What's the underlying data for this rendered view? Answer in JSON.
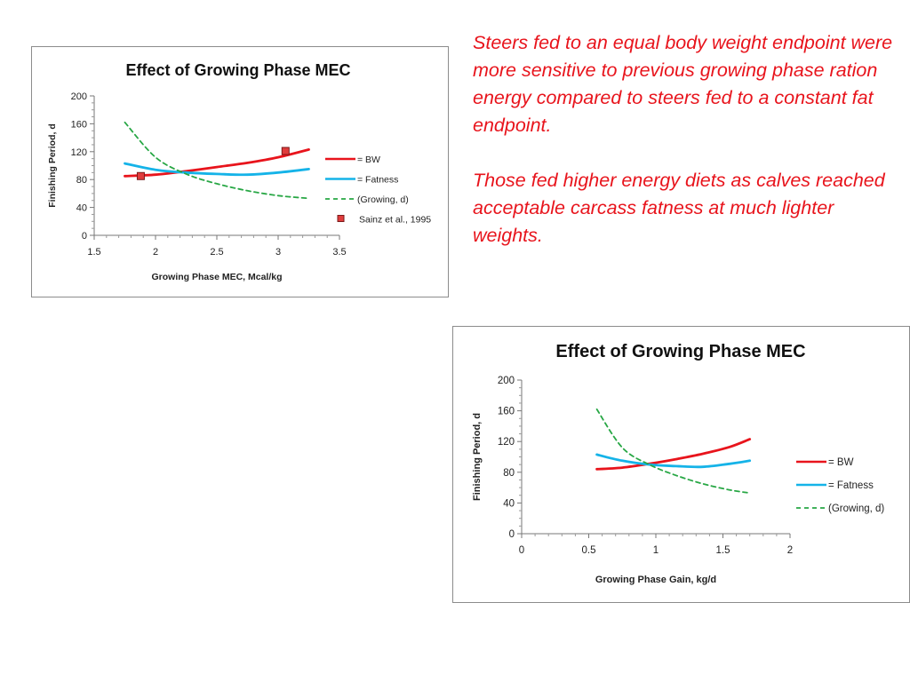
{
  "notes": {
    "para1": "Steers fed to an equal body weight endpoint were more sensitive to previous growing phase ration energy compared to steers fed to a constant fat endpoint.",
    "para2": "Those fed higher energy diets as calves reached acceptable carcass fatness at much lighter weights."
  },
  "colors": {
    "bw": "#e8141c",
    "fatness": "#15b3e8",
    "growing": "#28a745",
    "sainz_fill": "#e03c3c",
    "note_text": "#e8141c"
  },
  "chart_data": [
    {
      "type": "line",
      "title": "Effect of Growing Phase MEC",
      "xlabel": "Growing Phase MEC, Mcal/kg",
      "ylabel": "Finishing Period, d",
      "xlim": [
        1.5,
        3.5
      ],
      "ylim": [
        0,
        200
      ],
      "x_ticks": [
        1.5,
        2,
        2.5,
        3,
        3.5
      ],
      "x_tick_labels": [
        "1.5",
        "2",
        "2.5",
        "3",
        "3.5"
      ],
      "y_ticks": [
        0,
        40,
        80,
        120,
        160,
        200
      ],
      "y_tick_labels": [
        "0",
        "40",
        "80",
        "120",
        "160",
        "200"
      ],
      "grid": false,
      "legend_position": "right",
      "series": [
        {
          "name": "= BW",
          "style": "solid",
          "x": [
            1.75,
            2.0,
            2.25,
            2.5,
            2.75,
            3.0,
            3.25
          ],
          "y": [
            85,
            87,
            92,
            98,
            104,
            112,
            123
          ]
        },
        {
          "name": "= Fatness",
          "style": "solid",
          "x": [
            1.75,
            2.0,
            2.25,
            2.5,
            2.75,
            3.0,
            3.25
          ],
          "y": [
            103,
            94,
            90,
            88,
            87,
            90,
            95
          ]
        },
        {
          "name": "(Growing, d)",
          "style": "dashed",
          "x": [
            1.75,
            2.0,
            2.25,
            2.5,
            2.75,
            3.0,
            3.25
          ],
          "y": [
            162,
            112,
            88,
            74,
            64,
            57,
            53
          ]
        },
        {
          "name": "Sainz et al., 1995",
          "style": "marker",
          "x": [
            1.88,
            3.06
          ],
          "y": [
            85,
            121
          ]
        }
      ]
    },
    {
      "type": "line",
      "title": "Effect of Growing Phase MEC",
      "xlabel": "Growing Phase Gain, kg/d",
      "ylabel": "Finishing Period, d",
      "xlim": [
        0,
        2
      ],
      "ylim": [
        0,
        200
      ],
      "x_ticks": [
        0,
        0.5,
        1,
        1.5,
        2
      ],
      "x_tick_labels": [
        "0",
        "0.5",
        "1",
        "1.5",
        "2"
      ],
      "y_ticks": [
        0,
        40,
        80,
        120,
        160,
        200
      ],
      "y_tick_labels": [
        "0",
        "40",
        "80",
        "120",
        "160",
        "200"
      ],
      "grid": false,
      "legend_position": "right",
      "series": [
        {
          "name": "= BW",
          "style": "solid",
          "x": [
            0.56,
            0.75,
            0.95,
            1.15,
            1.35,
            1.55,
            1.7
          ],
          "y": [
            84,
            86,
            91,
            97,
            104,
            113,
            123
          ]
        },
        {
          "name": "= Fatness",
          "style": "solid",
          "x": [
            0.56,
            0.75,
            0.95,
            1.15,
            1.35,
            1.55,
            1.7
          ],
          "y": [
            103,
            95,
            90,
            88,
            87,
            91,
            95
          ]
        },
        {
          "name": "(Growing, d)",
          "style": "dashed",
          "x": [
            0.56,
            0.75,
            0.95,
            1.15,
            1.35,
            1.55,
            1.7
          ],
          "y": [
            162,
            112,
            90,
            76,
            65,
            57,
            53
          ]
        }
      ]
    }
  ]
}
